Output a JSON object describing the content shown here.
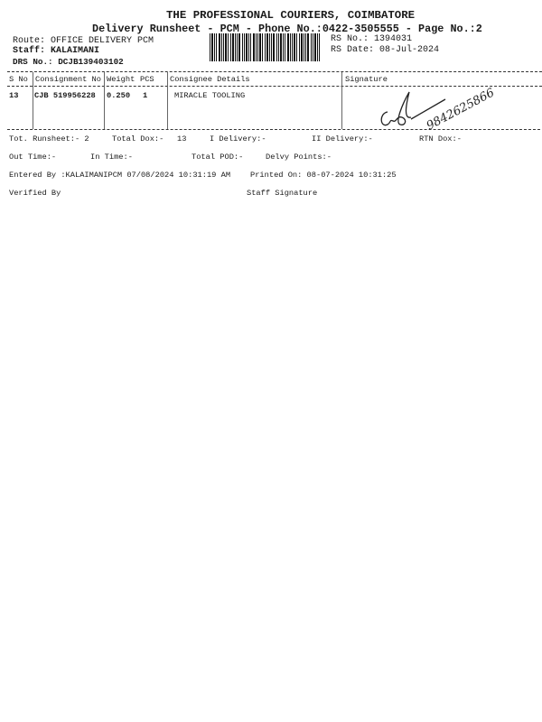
{
  "header": {
    "company": "THE PROFESSIONAL COURIERS, COIMBATORE",
    "subtitle": "Delivery Runsheet - PCM - Phone No.:0422-3505555 - Page No.:2",
    "route": "Route: OFFICE DELIVERY PCM",
    "staff": "Staff: KALAIMANI",
    "drs_no": "DRS No.: DCJB139403102",
    "rs_no": "RS No.: 1394031",
    "rs_date": "RS Date: 08-Jul-2024"
  },
  "table": {
    "columns": [
      "S No",
      "Consignment No",
      "Weight",
      "PCS",
      "Consignee Details",
      "Signature"
    ],
    "rows": [
      {
        "s_no": "13",
        "consignment_no": "CJB 519956228",
        "weight": "0.250",
        "pcs": "1",
        "consignee": "MIRACLE TOOLING",
        "signature_note": "9842625866"
      }
    ]
  },
  "summary": {
    "tot_runsheet": "Tot. Runsheet:- 2",
    "total_dox": "Total Dox:-",
    "total_dox_value": "13",
    "i_delivery": "I Delivery:-",
    "ii_delivery": "II Delivery:-",
    "rtn_dox": "RTN Dox:-",
    "out_time": "Out Time:-",
    "in_time": "In Time:-",
    "total_pod": "Total POD:-",
    "delvy_points": "Delvy Points:-",
    "entered_by": "Entered By :KALAIMANIPCM 07/08/2024 10:31:19 AM",
    "printed_on": "Printed On: 08-07-2024 10:31:25",
    "verified_by": "Verified By",
    "staff_signature": "Staff Signature"
  }
}
